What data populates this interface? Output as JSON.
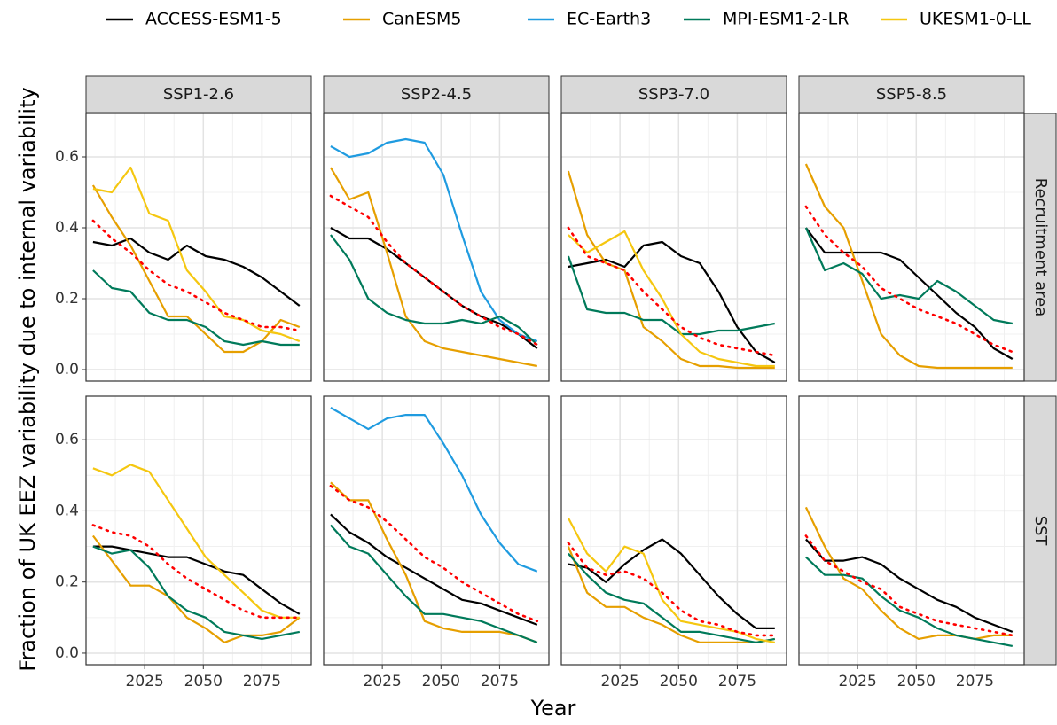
{
  "chart_data": {
    "type": "line",
    "ylabel": "Fraction of UK EEZ variability due to internal variability",
    "xlabel": "Year",
    "legend_position": "top",
    "grid": true,
    "x": [
      2003,
      2011,
      2019,
      2027,
      2035,
      2043,
      2051,
      2059,
      2067,
      2075,
      2083,
      2091
    ],
    "xlim": [
      2000,
      2096
    ],
    "xticks": [
      2025,
      2050,
      2075
    ],
    "ylim": [
      -0.0325,
      0.7225
    ],
    "yticks": [
      {
        "value": 0,
        "label": "0.0"
      },
      0.2,
      0.4,
      0.6
    ],
    "columns": [
      "SSP1-2.6",
      "SSP2-4.5",
      "SSP3-7.0",
      "SSP5-8.5"
    ],
    "rows": [
      "Recruitment area",
      "SST"
    ],
    "series": [
      {
        "name": "ACCESS-ESM1-5",
        "color": "#000000"
      },
      {
        "name": "CanESM5",
        "color": "#E69F00"
      },
      {
        "name": "EC-Earth3",
        "color": "#1F9BE0"
      },
      {
        "name": "MPI-ESM1-2-LR",
        "color": "#007A5A"
      },
      {
        "name": "UKESM1-0-LL",
        "color": "#F5C710"
      }
    ],
    "mean_color": "#FF0000",
    "panels": [
      [
        {
          "values": [
            [
              0.36,
              0.35,
              0.37,
              0.33,
              0.31,
              0.35,
              0.32,
              0.31,
              0.29,
              0.26,
              0.22,
              0.18
            ],
            [
              0.52,
              0.43,
              0.35,
              0.25,
              0.15,
              0.15,
              0.1,
              0.05,
              0.05,
              0.08,
              0.14,
              0.12
            ],
            null,
            [
              0.28,
              0.23,
              0.22,
              0.16,
              0.14,
              0.14,
              0.12,
              0.08,
              0.07,
              0.08,
              0.07,
              0.07
            ],
            [
              0.51,
              0.5,
              0.57,
              0.44,
              0.42,
              0.28,
              0.22,
              0.15,
              0.14,
              0.11,
              0.1,
              0.08
            ]
          ],
          "mean": [
            0.42,
            0.37,
            0.33,
            0.28,
            0.24,
            0.22,
            0.19,
            0.16,
            0.14,
            0.12,
            0.12,
            0.11
          ]
        },
        {
          "values": [
            [
              0.4,
              0.37,
              0.37,
              0.34,
              0.3,
              0.26,
              0.22,
              0.18,
              0.15,
              0.13,
              0.1,
              0.06
            ],
            [
              0.57,
              0.48,
              0.5,
              0.33,
              0.15,
              0.08,
              0.06,
              0.05,
              0.04,
              0.03,
              0.02,
              0.01
            ],
            [
              0.63,
              0.6,
              0.61,
              0.64,
              0.65,
              0.64,
              0.55,
              0.38,
              0.22,
              0.14,
              0.1,
              0.08
            ],
            [
              0.38,
              0.31,
              0.2,
              0.16,
              0.14,
              0.13,
              0.13,
              0.14,
              0.13,
              0.15,
              0.12,
              0.07
            ],
            null
          ],
          "mean": [
            0.49,
            0.46,
            0.43,
            0.36,
            0.3,
            0.26,
            0.22,
            0.18,
            0.15,
            0.12,
            0.1,
            0.07
          ]
        },
        {
          "values": [
            [
              0.29,
              0.3,
              0.31,
              0.29,
              0.35,
              0.36,
              0.32,
              0.3,
              0.22,
              0.12,
              0.05,
              0.02
            ],
            [
              0.56,
              0.38,
              0.3,
              0.28,
              0.12,
              0.08,
              0.03,
              0.01,
              0.01,
              0.005,
              0.005,
              0.005
            ],
            null,
            [
              0.32,
              0.17,
              0.16,
              0.16,
              0.14,
              0.14,
              0.1,
              0.1,
              0.11,
              0.11,
              0.12,
              0.13
            ],
            [
              0.38,
              0.33,
              0.36,
              0.39,
              0.28,
              0.2,
              0.1,
              0.05,
              0.03,
              0.02,
              0.01,
              0.01
            ]
          ],
          "mean": [
            0.4,
            0.32,
            0.3,
            0.28,
            0.22,
            0.17,
            0.12,
            0.09,
            0.07,
            0.06,
            0.05,
            0.04
          ]
        },
        {
          "values": [
            [
              0.4,
              0.33,
              0.33,
              0.33,
              0.33,
              0.31,
              0.26,
              0.21,
              0.16,
              0.12,
              0.06,
              0.03
            ],
            [
              0.58,
              0.46,
              0.4,
              0.25,
              0.1,
              0.04,
              0.01,
              0.005,
              0.005,
              0.005,
              0.005,
              0.005
            ],
            null,
            [
              0.4,
              0.28,
              0.3,
              0.27,
              0.2,
              0.21,
              0.2,
              0.25,
              0.22,
              0.18,
              0.14,
              0.13
            ],
            null
          ],
          "mean": [
            0.46,
            0.38,
            0.33,
            0.29,
            0.23,
            0.2,
            0.17,
            0.15,
            0.13,
            0.1,
            0.07,
            0.05
          ]
        }
      ],
      [
        {
          "values": [
            [
              0.3,
              0.3,
              0.29,
              0.28,
              0.27,
              0.27,
              0.25,
              0.23,
              0.22,
              0.18,
              0.14,
              0.11
            ],
            [
              0.33,
              0.26,
              0.19,
              0.19,
              0.16,
              0.1,
              0.07,
              0.03,
              0.05,
              0.05,
              0.06,
              0.1
            ],
            null,
            [
              0.3,
              0.28,
              0.29,
              0.24,
              0.16,
              0.12,
              0.1,
              0.06,
              0.05,
              0.04,
              0.05,
              0.06
            ],
            [
              0.52,
              0.5,
              0.53,
              0.51,
              0.43,
              0.35,
              0.27,
              0.22,
              0.17,
              0.12,
              0.1,
              0.1
            ]
          ],
          "mean": [
            0.36,
            0.34,
            0.33,
            0.3,
            0.25,
            0.21,
            0.18,
            0.15,
            0.12,
            0.1,
            0.1,
            0.1
          ]
        },
        {
          "values": [
            [
              0.39,
              0.34,
              0.31,
              0.27,
              0.24,
              0.21,
              0.18,
              0.15,
              0.14,
              0.12,
              0.1,
              0.08
            ],
            [
              0.48,
              0.43,
              0.43,
              0.32,
              0.22,
              0.09,
              0.07,
              0.06,
              0.06,
              0.06,
              0.05,
              0.03
            ],
            [
              0.69,
              0.66,
              0.63,
              0.66,
              0.67,
              0.67,
              0.59,
              0.5,
              0.39,
              0.31,
              0.25,
              0.23
            ],
            [
              0.36,
              0.3,
              0.28,
              0.22,
              0.16,
              0.11,
              0.11,
              0.1,
              0.09,
              0.07,
              0.05,
              0.03
            ],
            null
          ],
          "mean": [
            0.47,
            0.43,
            0.41,
            0.37,
            0.32,
            0.27,
            0.24,
            0.2,
            0.17,
            0.14,
            0.11,
            0.09
          ]
        },
        {
          "values": [
            [
              0.25,
              0.24,
              0.2,
              0.25,
              0.29,
              0.32,
              0.28,
              0.22,
              0.16,
              0.11,
              0.07,
              0.07
            ],
            [
              0.3,
              0.17,
              0.13,
              0.13,
              0.1,
              0.08,
              0.05,
              0.03,
              0.03,
              0.03,
              0.03,
              0.04
            ],
            null,
            [
              0.28,
              0.22,
              0.17,
              0.15,
              0.14,
              0.1,
              0.06,
              0.06,
              0.05,
              0.04,
              0.03,
              0.04
            ],
            [
              0.38,
              0.28,
              0.23,
              0.3,
              0.28,
              0.15,
              0.09,
              0.08,
              0.07,
              0.06,
              0.04,
              0.03
            ]
          ],
          "mean": [
            0.31,
            0.24,
            0.22,
            0.23,
            0.21,
            0.17,
            0.12,
            0.09,
            0.08,
            0.06,
            0.05,
            0.05
          ]
        },
        {
          "values": [
            [
              0.32,
              0.26,
              0.26,
              0.27,
              0.25,
              0.21,
              0.18,
              0.15,
              0.13,
              0.1,
              0.08,
              0.06
            ],
            [
              0.41,
              0.3,
              0.21,
              0.18,
              0.12,
              0.07,
              0.04,
              0.05,
              0.05,
              0.04,
              0.05,
              0.05
            ],
            null,
            [
              0.27,
              0.22,
              0.22,
              0.21,
              0.16,
              0.12,
              0.1,
              0.07,
              0.05,
              0.04,
              0.03,
              0.02
            ],
            null
          ],
          "mean": [
            0.33,
            0.26,
            0.23,
            0.2,
            0.18,
            0.13,
            0.11,
            0.09,
            0.08,
            0.07,
            0.06,
            0.05
          ]
        }
      ]
    ]
  }
}
